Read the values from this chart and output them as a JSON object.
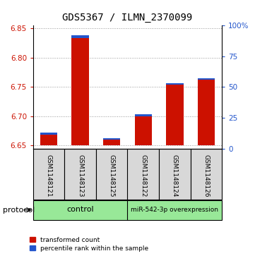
{
  "title": "GDS5367 / ILMN_2370099",
  "samples": [
    "GSM1148121",
    "GSM1148123",
    "GSM1148125",
    "GSM1148122",
    "GSM1148124",
    "GSM1148126"
  ],
  "groups": [
    "control",
    "control",
    "control",
    "miR-542-3p overexpression",
    "miR-542-3p overexpression",
    "miR-542-3p overexpression"
  ],
  "group_labels": [
    "control",
    "miR-542-3p overexpression"
  ],
  "baseline": 6.65,
  "red_tops": [
    6.672,
    6.838,
    6.663,
    6.703,
    6.757,
    6.765
  ],
  "blue_heights": [
    0.004,
    0.004,
    0.003,
    0.003,
    0.003,
    0.003
  ],
  "ylim_left": [
    6.645,
    6.855
  ],
  "ylim_right": [
    0,
    100
  ],
  "yticks_left": [
    6.65,
    6.7,
    6.75,
    6.8,
    6.85
  ],
  "yticks_right": [
    0,
    25,
    50,
    75,
    100
  ],
  "ytick_labels_right": [
    "0",
    "25",
    "50",
    "75",
    "100%"
  ],
  "bar_color_red": "#cc1100",
  "bar_color_blue": "#2255cc",
  "bar_width": 0.55,
  "protocol_label": "protocol",
  "legend1": "transformed count",
  "legend2": "percentile rank within the sample",
  "title_fontsize": 10,
  "tick_fontsize": 7.5,
  "grid_color": "#999999",
  "sample_box_color": "#d8d8d8",
  "green_color": "#98e898"
}
